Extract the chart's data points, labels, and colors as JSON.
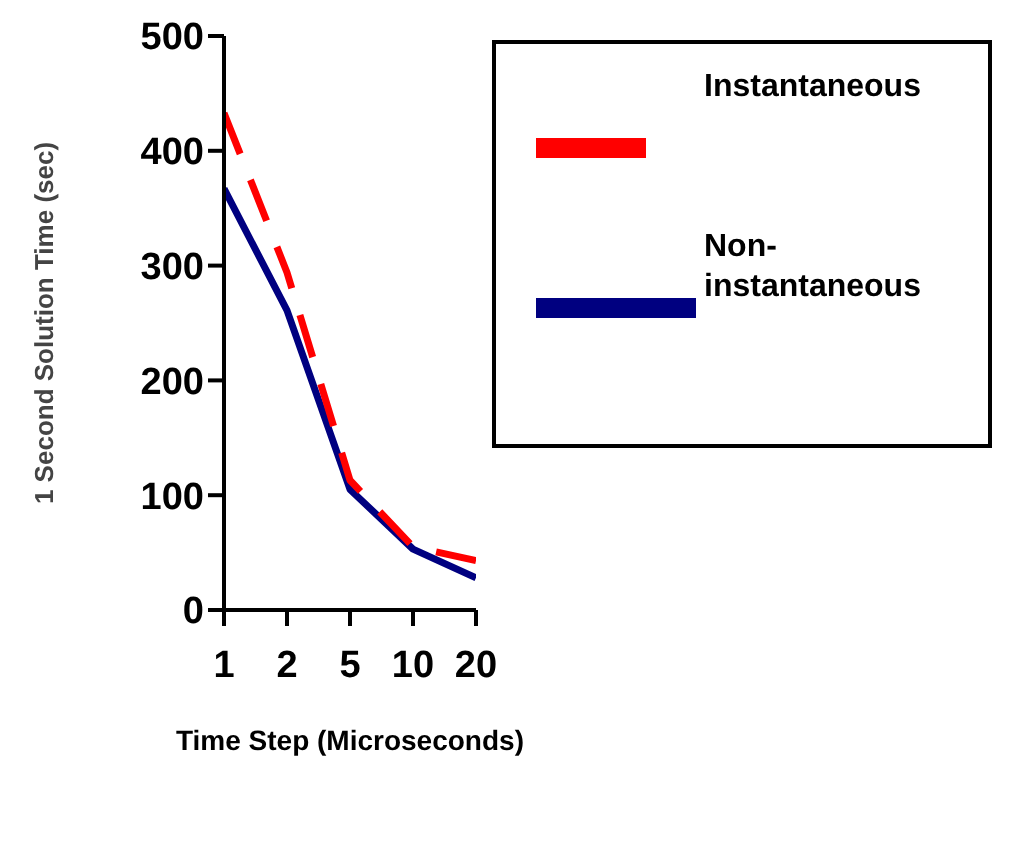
{
  "chart_data": {
    "type": "line",
    "xlabel": "Time Step (Microseconds)",
    "ylabel": "1 Second Solution Time (sec)",
    "categories": [
      "1",
      "2",
      "5",
      "10",
      "20"
    ],
    "series": [
      {
        "name": "Non-instantaneous",
        "color": "#000080",
        "values": [
          367,
          261,
          105,
          53,
          28
        ],
        "line_style": "solid"
      },
      {
        "name": "Instantaneous",
        "color": "#ff0000",
        "values": [
          433,
          294,
          113,
          55,
          43
        ],
        "line_style": "dashed"
      }
    ],
    "ylim": [
      0,
      500
    ],
    "yticks": [
      0,
      100,
      200,
      300,
      400,
      500
    ],
    "grid": false,
    "legend": "top right",
    "marker": "none"
  }
}
